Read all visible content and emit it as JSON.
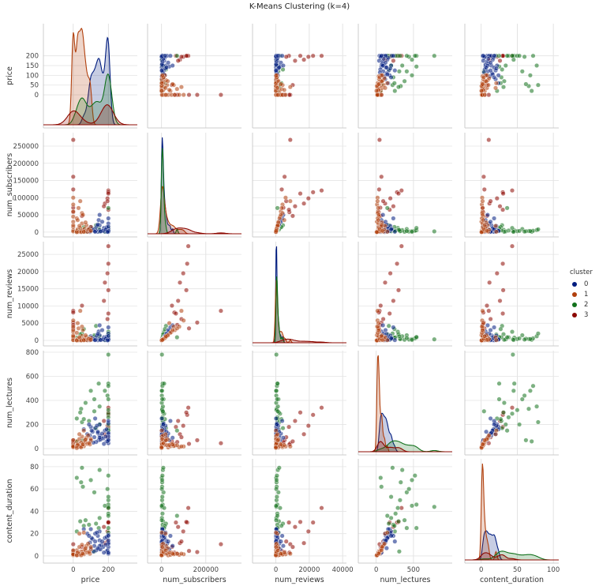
{
  "chart_data": {
    "type": "scatter",
    "title": "K-Means Clustering (k=4)",
    "variables": [
      "price",
      "num_subscribers",
      "num_reviews",
      "num_lectures",
      "content_duration"
    ],
    "ranges": {
      "price": [
        -170,
        365
      ],
      "num_subscribers": [
        -14000,
        289000
      ],
      "num_reviews": [
        -1600,
        28700
      ],
      "num_lectures": [
        -52,
        813
      ],
      "content_duration": [
        -6.4,
        87
      ]
    },
    "xranges": {
      "price": [
        -170,
        365
      ],
      "num_subscribers": [
        -63000,
        361000
      ],
      "num_reviews": [
        -14000,
        42300
      ],
      "num_lectures": [
        -240,
        1020
      ],
      "content_duration": [
        -22.6,
        107.5
      ]
    },
    "row_ticks": {
      "price": [
        0,
        50,
        100,
        150,
        200
      ],
      "num_subscribers": [
        0,
        50000,
        100000,
        150000,
        200000,
        250000
      ],
      "num_reviews": [
        0,
        5000,
        10000,
        15000,
        20000,
        25000
      ],
      "num_lectures": [
        0,
        200,
        400,
        600,
        800
      ],
      "content_duration": [
        0,
        20,
        40,
        60,
        80
      ]
    },
    "col_ticks": {
      "price": [
        0,
        200
      ],
      "num_subscribers": [
        0,
        200000
      ],
      "num_reviews": [
        0,
        20000,
        40000
      ],
      "num_lectures": [
        0,
        500
      ],
      "content_duration": [
        0,
        50,
        100
      ]
    },
    "diagonal": "kde",
    "grid": true,
    "legend": {
      "title": "cluster",
      "placement": "right",
      "labels": [
        "0",
        "1",
        "2",
        "3"
      ]
    },
    "colors": [
      "#001c7f",
      "#b1400d",
      "#12711c",
      "#8c0800"
    ],
    "point_fields": [
      "price",
      "num_subscribers",
      "num_reviews",
      "num_lectures",
      "content_duration",
      "cluster"
    ],
    "points": [
      [
        0,
        268000,
        8600,
        45,
        10.5,
        3
      ],
      [
        200,
        121000,
        27400,
        340,
        43,
        3
      ],
      [
        200,
        116000,
        22300,
        280,
        30,
        3
      ],
      [
        195,
        98000,
        19500,
        190,
        22,
        3
      ],
      [
        180,
        83000,
        16800,
        120,
        11.5,
        3
      ],
      [
        0,
        161000,
        5200,
        70,
        3.5,
        3
      ],
      [
        200,
        112000,
        14600,
        300,
        30.5,
        3
      ],
      [
        175,
        75000,
        11500,
        230,
        26,
        3
      ],
      [
        0,
        58000,
        8100,
        35,
        3,
        3
      ],
      [
        200,
        65000,
        7800,
        180,
        30,
        3
      ],
      [
        50,
        47000,
        10100,
        60,
        8,
        3
      ],
      [
        0,
        124000,
        3500,
        40,
        4.5,
        3
      ],
      [
        195,
        90000,
        6200,
        95,
        13,
        3
      ],
      [
        0,
        71000,
        4500,
        55,
        2,
        3
      ],
      [
        200,
        5000,
        800,
        540,
        46,
        2
      ],
      [
        200,
        2000,
        300,
        780,
        44,
        2
      ],
      [
        120,
        9000,
        1500,
        410,
        57,
        2
      ],
      [
        45,
        3000,
        400,
        330,
        66,
        2
      ],
      [
        20,
        1000,
        200,
        60,
        70,
        2
      ],
      [
        55,
        2500,
        500,
        70,
        62,
        2
      ],
      [
        200,
        4000,
        600,
        520,
        72,
        2
      ],
      [
        195,
        1500,
        250,
        440,
        60,
        2
      ],
      [
        150,
        6000,
        1200,
        350,
        77,
        2
      ],
      [
        50,
        8000,
        2000,
        220,
        79,
        2
      ],
      [
        100,
        3000,
        400,
        480,
        68,
        2
      ],
      [
        200,
        12000,
        2500,
        290,
        43,
        2
      ],
      [
        200,
        4500,
        900,
        260,
        38,
        2
      ],
      [
        40,
        7000,
        1800,
        300,
        31,
        2
      ],
      [
        150,
        2000,
        300,
        200,
        34,
        2
      ],
      [
        70,
        1000,
        200,
        380,
        32,
        2
      ],
      [
        200,
        3000,
        700,
        410,
        25,
        2
      ],
      [
        90,
        5000,
        900,
        230,
        28,
        2
      ],
      [
        130,
        20000,
        4200,
        170,
        29,
        2
      ],
      [
        200,
        8000,
        1700,
        160,
        21,
        2
      ],
      [
        60,
        15000,
        3300,
        245,
        27,
        2
      ],
      [
        200,
        2500,
        400,
        320,
        50,
        2
      ],
      [
        180,
        1000,
        150,
        480,
        45,
        2
      ],
      [
        20,
        4000,
        800,
        250,
        22,
        2
      ],
      [
        200,
        70000,
        900,
        150,
        36,
        2
      ],
      [
        145,
        12000,
        1000,
        540,
        25,
        2
      ],
      [
        120,
        6000,
        1200,
        310,
        4,
        2
      ],
      [
        200,
        3500,
        600,
        200,
        53,
        2
      ],
      [
        200,
        2000,
        100,
        80,
        8,
        0
      ],
      [
        200,
        5000,
        300,
        120,
        12,
        0
      ],
      [
        190,
        8000,
        500,
        60,
        4,
        0
      ],
      [
        180,
        1500,
        80,
        150,
        16,
        0
      ],
      [
        175,
        12000,
        900,
        40,
        3,
        0
      ],
      [
        160,
        3000,
        200,
        90,
        10,
        0
      ],
      [
        150,
        20000,
        1500,
        110,
        14,
        0
      ],
      [
        150,
        6000,
        400,
        200,
        22,
        0
      ],
      [
        145,
        35000,
        2600,
        70,
        6,
        0
      ],
      [
        140,
        1000,
        50,
        130,
        18,
        0
      ],
      [
        130,
        4000,
        250,
        55,
        5,
        0
      ],
      [
        125,
        10000,
        700,
        170,
        20,
        0
      ],
      [
        120,
        2500,
        150,
        95,
        9,
        0
      ],
      [
        110,
        7000,
        450,
        140,
        15,
        0
      ],
      [
        100,
        15000,
        1200,
        65,
        7,
        0
      ],
      [
        100,
        3000,
        200,
        180,
        24,
        0
      ],
      [
        95,
        500,
        30,
        110,
        12,
        0
      ],
      [
        200,
        25000,
        2000,
        100,
        11,
        0
      ],
      [
        200,
        9000,
        600,
        210,
        19,
        0
      ],
      [
        200,
        1000,
        70,
        45,
        2,
        0
      ],
      [
        190,
        14000,
        1100,
        160,
        17,
        0
      ],
      [
        170,
        4000,
        300,
        85,
        8,
        0
      ],
      [
        165,
        30000,
        3000,
        125,
        13,
        0
      ],
      [
        155,
        2000,
        120,
        75,
        6,
        0
      ],
      [
        135,
        18000,
        1400,
        190,
        21,
        0
      ],
      [
        115,
        5500,
        350,
        50,
        4,
        0
      ],
      [
        105,
        11000,
        800,
        150,
        16,
        0
      ],
      [
        200,
        3500,
        250,
        130,
        14,
        0
      ],
      [
        185,
        7500,
        550,
        100,
        10,
        0
      ],
      [
        200,
        40000,
        3800,
        230,
        18,
        0
      ],
      [
        80,
        2000,
        150,
        120,
        20,
        0
      ],
      [
        60,
        4000,
        300,
        160,
        24,
        0
      ],
      [
        195,
        600,
        40,
        60,
        5,
        0
      ],
      [
        150,
        50000,
        4400,
        90,
        9,
        0
      ],
      [
        125,
        1200,
        90,
        250,
        13,
        0
      ],
      [
        90,
        8500,
        600,
        200,
        18,
        0
      ],
      [
        200,
        16000,
        1300,
        70,
        3,
        0
      ],
      [
        140,
        22000,
        1900,
        140,
        7,
        0
      ],
      [
        0,
        5000,
        200,
        20,
        1,
        1
      ],
      [
        0,
        15000,
        800,
        30,
        2,
        1
      ],
      [
        0,
        30000,
        1500,
        10,
        0.5,
        1
      ],
      [
        0,
        45000,
        2500,
        40,
        3,
        1
      ],
      [
        0,
        2000,
        100,
        15,
        1.5,
        1
      ],
      [
        0,
        60000,
        3000,
        25,
        2,
        1
      ],
      [
        0,
        80000,
        4000,
        12,
        1,
        1
      ],
      [
        0,
        100000,
        5800,
        18,
        1.5,
        1
      ],
      [
        20,
        1000,
        50,
        25,
        2,
        1
      ],
      [
        20,
        3000,
        150,
        60,
        5,
        1
      ],
      [
        25,
        8000,
        400,
        40,
        3,
        1
      ],
      [
        30,
        500,
        20,
        15,
        1,
        1
      ],
      [
        35,
        2000,
        100,
        80,
        8,
        1
      ],
      [
        40,
        12000,
        600,
        35,
        2.5,
        1
      ],
      [
        45,
        4000,
        200,
        50,
        4,
        1
      ],
      [
        50,
        25000,
        1300,
        30,
        2,
        1
      ],
      [
        50,
        1500,
        80,
        100,
        10,
        1
      ],
      [
        55,
        6000,
        300,
        45,
        4,
        1
      ],
      [
        60,
        500,
        30,
        20,
        1.5,
        1
      ],
      [
        65,
        10000,
        500,
        70,
        6,
        1
      ],
      [
        70,
        3000,
        150,
        55,
        5,
        1
      ],
      [
        75,
        20000,
        1000,
        90,
        9,
        1
      ],
      [
        80,
        1000,
        60,
        40,
        3,
        1
      ],
      [
        85,
        7000,
        350,
        110,
        11,
        1
      ],
      [
        95,
        2500,
        120,
        35,
        2,
        1
      ],
      [
        100,
        15000,
        700,
        65,
        6,
        1
      ],
      [
        20,
        40000,
        2200,
        20,
        1,
        1
      ],
      [
        30,
        70000,
        3500,
        28,
        2,
        1
      ],
      [
        40,
        90000,
        8600,
        18,
        2,
        1
      ],
      [
        50,
        55000,
        4000,
        22,
        1.5,
        1
      ],
      [
        25,
        35000,
        5000,
        30,
        3,
        1
      ],
      [
        20,
        0,
        0,
        5,
        0.5,
        1
      ],
      [
        45,
        300,
        10,
        10,
        0.6,
        1
      ],
      [
        35,
        18000,
        900,
        120,
        20,
        1
      ],
      [
        60,
        1200,
        70,
        150,
        21,
        1
      ],
      [
        70,
        28000,
        1500,
        75,
        7,
        1
      ],
      [
        90,
        9000,
        450,
        45,
        3.5,
        1
      ],
      [
        100,
        4000,
        200,
        80,
        8,
        1
      ],
      [
        55,
        50000,
        3000,
        35,
        2,
        1
      ],
      [
        0,
        20000,
        1200,
        70,
        5,
        1
      ]
    ]
  }
}
